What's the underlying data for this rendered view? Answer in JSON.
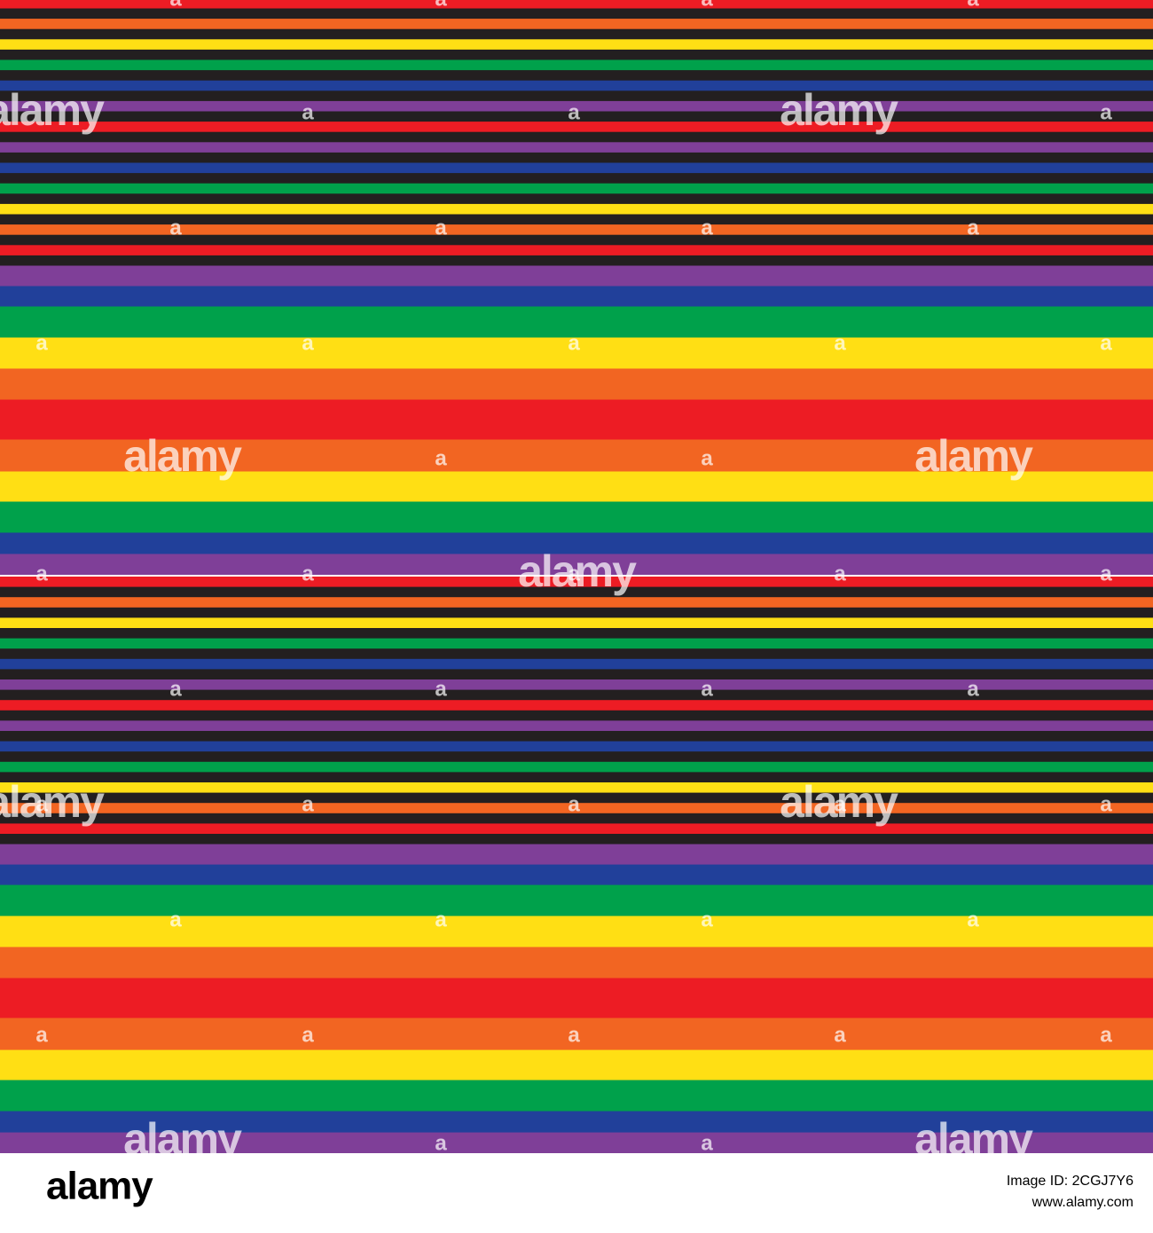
{
  "watermark": {
    "logo": "alamy",
    "mark": "a"
  },
  "footer": {
    "logo": "alamy",
    "image_id": "Image ID: 2CGJ7Y6",
    "url": "www.alamy.com"
  }
}
